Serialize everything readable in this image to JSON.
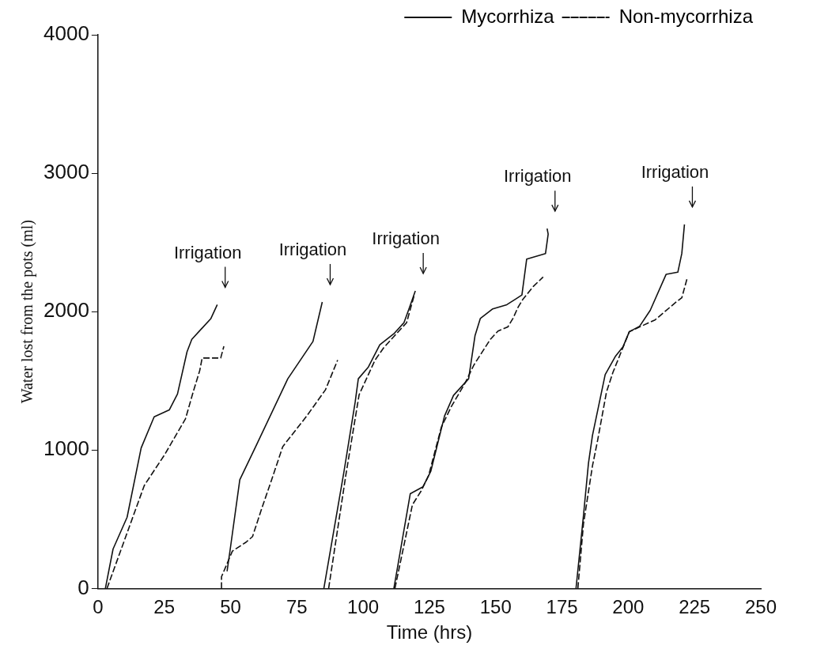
{
  "chart_data": {
    "type": "line",
    "xlabel": "Time (hrs)",
    "ylabel": "Water lost from the pots (ml)",
    "xlim": [
      0,
      250
    ],
    "xticks": [
      0,
      25,
      50,
      75,
      100,
      125,
      150,
      175,
      200,
      225,
      250
    ],
    "ylim": [
      0,
      4000
    ],
    "yticks": [
      0,
      1000,
      2000,
      3000,
      4000
    ],
    "grid": false,
    "legend": "top right",
    "marker": "none",
    "series": [
      {
        "name": "Mycorrhiza",
        "color": "#111111",
        "line_style": "solid",
        "x": [
          2.8,
          5.7,
          11.0,
          16.3,
          21.2,
          26.9,
          30.0,
          33.6,
          35.4,
          42.6,
          45.0
        ],
        "values": [
          0,
          285,
          515,
          1015,
          1240,
          1290,
          1405,
          1710,
          1800,
          1950,
          2050
        ]
      },
      {
        "name": "Non-mycorrhiza",
        "color": "#111111",
        "line_style": "dashed",
        "x": [
          3.4,
          8.7,
          17.5,
          25.1,
          33.0,
          36.0,
          38.4,
          39.3,
          46.3,
          47.5
        ],
        "values": [
          0,
          280,
          745,
          965,
          1225,
          1425,
          1575,
          1665,
          1665,
          1750
        ]
      },
      {
        "color": "#111111",
        "line_style": "solid",
        "x": [
          48.7,
          49.9,
          53.5,
          59.5,
          71.6,
          81.1,
          84.6
        ],
        "values": [
          125,
          285,
          785,
          1025,
          1515,
          1785,
          2070
        ]
      },
      {
        "color": "#111111",
        "line_style": "dashed",
        "x": [
          46.6,
          46.6,
          50.7,
          55.9,
          58.3,
          61.9,
          65.5,
          69.7,
          78.7,
          85.8,
          90.4
        ],
        "values": [
          0,
          85,
          270,
          335,
          375,
          585,
          785,
          1025,
          1245,
          1435,
          1650
        ]
      },
      {
        "color": "#111111",
        "line_style": "solid",
        "x": [
          85.2,
          92.8,
          97.0,
          98.2,
          102.0,
          106.3,
          111.6,
          115.4,
          117.3,
          119.7
        ],
        "values": [
          0,
          845,
          1345,
          1515,
          1600,
          1760,
          1840,
          1920,
          2020,
          2150
        ]
      },
      {
        "color": "#111111",
        "line_style": "dashed",
        "x": [
          87.0,
          93.5,
          98.5,
          104.5,
          107.8,
          111.6,
          116.4,
          119.3
        ],
        "values": [
          0,
          820,
          1400,
          1650,
          1740,
          1820,
          1920,
          2120
        ]
      },
      {
        "color": "#111111",
        "line_style": "solid",
        "x": [
          111.6,
          117.8,
          122.6,
          125.5,
          130.7,
          134.1,
          139.8,
          142.2,
          144.2,
          148.9,
          154.2,
          157.5,
          159.9,
          161.7,
          168.8,
          169.8,
          169.4
        ],
        "values": [
          0,
          685,
          735,
          845,
          1245,
          1395,
          1515,
          1825,
          1950,
          2020,
          2050,
          2090,
          2120,
          2380,
          2420,
          2560,
          2600
        ]
      },
      {
        "color": "#111111",
        "line_style": "dashed",
        "x": [
          112.0,
          118.6,
          121.9,
          124.7,
          129.5,
          133.3,
          138.5,
          141.8,
          148.0,
          150.9,
          154.6,
          156.5,
          158.4,
          160.3,
          164.1,
          167.9
        ],
        "values": [
          0,
          605,
          705,
          815,
          1165,
          1315,
          1485,
          1615,
          1800,
          1860,
          1890,
          1950,
          2030,
          2090,
          2180,
          2250
        ]
      },
      {
        "color": "#111111",
        "line_style": "solid",
        "x": [
          180.3,
          183.1,
          185.0,
          186.5,
          188.9,
          191.3,
          195.1,
          198.0,
          200.4,
          204.3,
          208.3,
          214.3,
          218.7,
          220.2,
          221.2
        ],
        "values": [
          0,
          525,
          905,
          1105,
          1325,
          1545,
          1675,
          1745,
          1855,
          1895,
          2010,
          2270,
          2285,
          2420,
          2630
        ]
      },
      {
        "color": "#111111",
        "line_style": "dashed",
        "x": [
          181.0,
          183.1,
          186.5,
          188.4,
          191.8,
          194.2,
          200.4,
          203.2,
          210.1,
          218.1,
          220.2,
          222.2
        ],
        "values": [
          0,
          465,
          885,
          1065,
          1420,
          1560,
          1855,
          1880,
          1940,
          2070,
          2100,
          2240
        ]
      }
    ],
    "annotations": [
      {
        "text": "Irrigation",
        "x": 45.0,
        "y": 2050
      },
      {
        "text": "Irrigation",
        "x": 84.6,
        "y": 2070
      },
      {
        "text": "Irrigation",
        "x": 119.7,
        "y": 2150
      },
      {
        "text": "Irrigation",
        "x": 169.4,
        "y": 2600
      },
      {
        "text": "Irrigation",
        "x": 221.2,
        "y": 2630
      }
    ]
  }
}
